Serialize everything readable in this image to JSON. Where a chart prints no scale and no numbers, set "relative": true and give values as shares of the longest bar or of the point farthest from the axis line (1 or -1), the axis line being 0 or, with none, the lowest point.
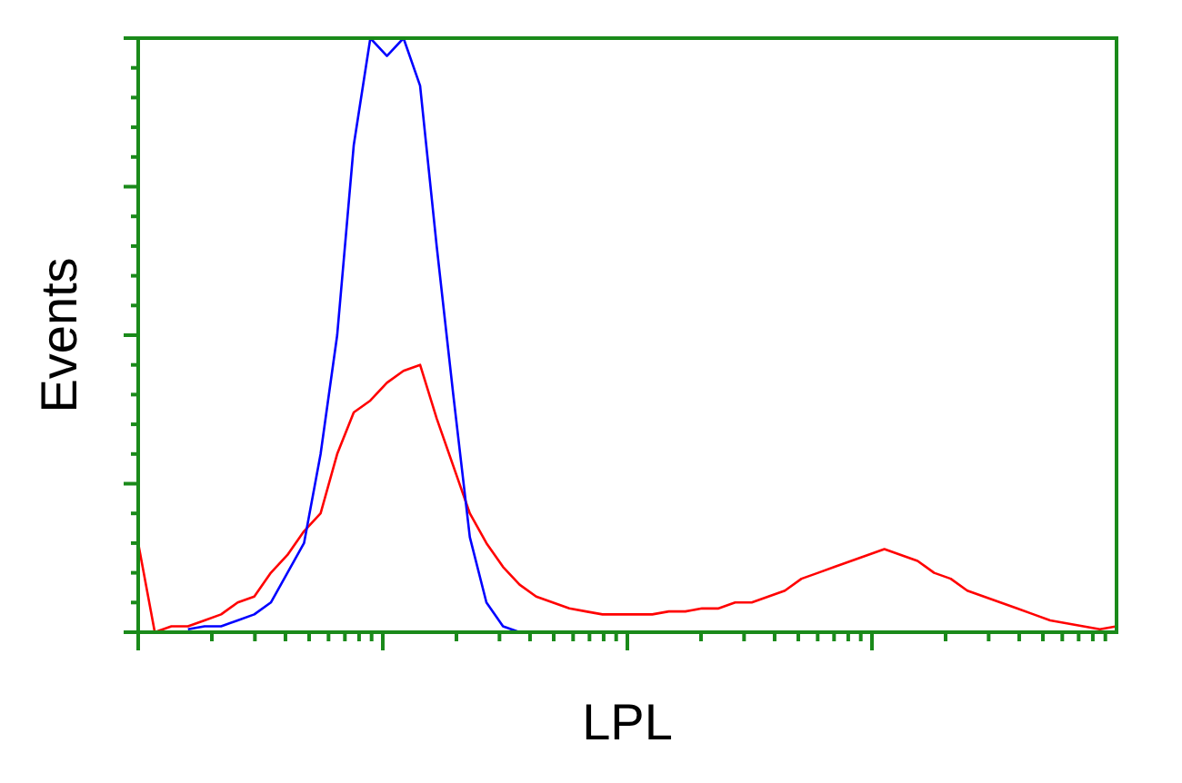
{
  "chart_data": {
    "type": "line",
    "relative": true,
    "xlabel": "LPL",
    "ylabel": "Events",
    "line_style": "solid",
    "categories": [
      null,
      null,
      null,
      null,
      null,
      null,
      null,
      null,
      null,
      null,
      null,
      null,
      null,
      null,
      null,
      null,
      null,
      null,
      null,
      null,
      null,
      null,
      null,
      null,
      null,
      null,
      null,
      null,
      null,
      null,
      null,
      null,
      null,
      null,
      null,
      null,
      null,
      null,
      null,
      null,
      null,
      null,
      null,
      null,
      null,
      null,
      null,
      null,
      null,
      null,
      null,
      null,
      null,
      null,
      null,
      null,
      null,
      null,
      null,
      null
    ],
    "series": [
      {
        "color": "#ff0000",
        "values": [
          0.15,
          0,
          0.01,
          0.01,
          0.02,
          0.03,
          0.05,
          0.06,
          0.1,
          0.13,
          0.17,
          0.2,
          0.3,
          0.37,
          0.39,
          0.42,
          0.44,
          0.45,
          0.36,
          0.28,
          0.2,
          0.15,
          0.11,
          0.08,
          0.06,
          0.05,
          0.04,
          0.035,
          0.03,
          0.03,
          0.03,
          0.03,
          0.035,
          0.035,
          0.04,
          0.04,
          0.05,
          0.05,
          0.06,
          0.07,
          0.09,
          0.1,
          0.11,
          0.12,
          0.13,
          0.14,
          0.13,
          0.12,
          0.1,
          0.09,
          0.07,
          0.06,
          0.05,
          0.04,
          0.03,
          0.02,
          0.015,
          0.01,
          0.005,
          0.01
        ]
      },
      {
        "color": "#0000ff",
        "values": [
          null,
          null,
          null,
          0.005,
          0.01,
          0.01,
          0.02,
          0.03,
          0.05,
          0.1,
          0.15,
          0.3,
          0.5,
          0.82,
          1,
          0.97,
          1,
          0.92,
          0.65,
          0.4,
          0.16,
          0.05,
          0.01,
          0,
          null,
          null,
          null,
          null,
          null,
          null,
          null,
          null,
          null,
          null,
          null,
          null,
          null,
          null,
          null,
          null,
          null,
          null,
          null,
          null,
          null,
          null,
          null,
          null,
          null,
          null,
          null,
          null,
          null,
          null,
          null,
          null,
          null,
          null,
          null,
          null
        ]
      }
    ]
  }
}
